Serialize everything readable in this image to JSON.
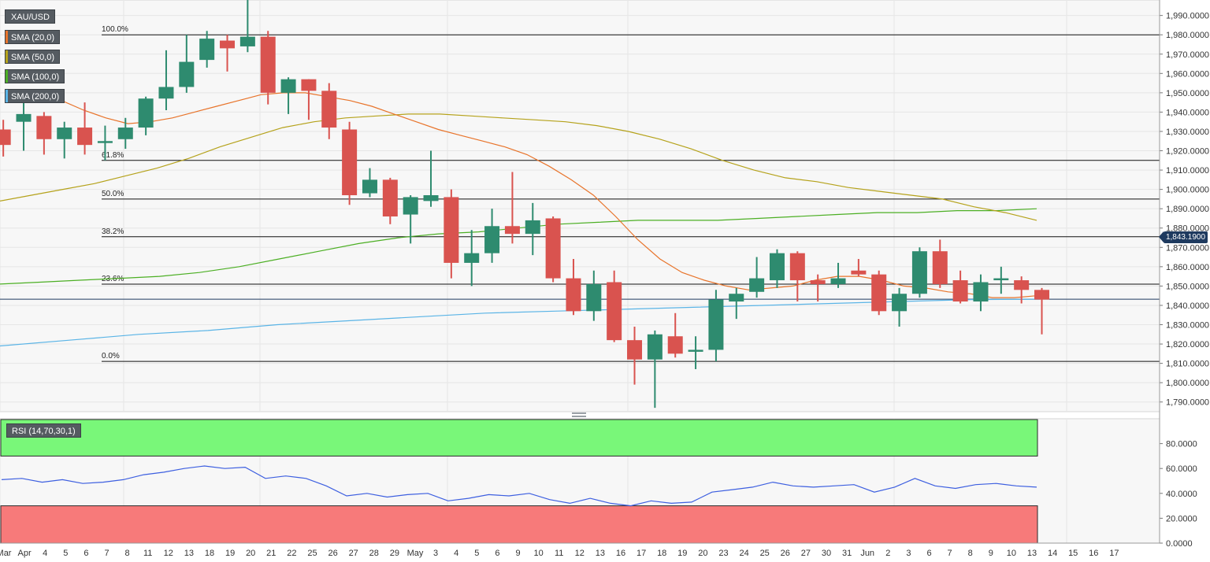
{
  "symbol": "XAU/USD",
  "price_tag": "1,843.1900",
  "legend": [
    {
      "label": "SMA (20,0)",
      "color": "#e8742b"
    },
    {
      "label": "SMA (50,0)",
      "color": "#b5a21b"
    },
    {
      "label": "SMA (100,0)",
      "color": "#4caf24"
    },
    {
      "label": "SMA (200,0)",
      "color": "#5ab4e6"
    }
  ],
  "rsi_label": "RSI (14,70,30,1)",
  "colors": {
    "up": "#2e8b6f",
    "down": "#d9534f",
    "last_price": "#1e3a5f",
    "rsi_line": "#3d5fe0",
    "overbought_zone": "#79f779",
    "oversold_zone": "#f77a7a"
  },
  "chart_data": [
    {
      "type": "candlestick",
      "title": "XAU/USD",
      "ylim": [
        1785,
        1998
      ],
      "y_ticks": [
        "1,790.0000",
        "1,800.0000",
        "1,810.0000",
        "1,820.0000",
        "1,830.0000",
        "1,840.0000",
        "1,850.0000",
        "1,860.0000",
        "1,870.0000",
        "1,880.0000",
        "1,890.0000",
        "1,900.0000",
        "1,910.0000",
        "1,920.0000",
        "1,930.0000",
        "1,940.0000",
        "1,950.0000",
        "1,960.0000",
        "1,970.0000",
        "1,980.0000",
        "1,990.0000"
      ],
      "x_labels": [
        "Mar",
        "Apr",
        "4",
        "5",
        "6",
        "7",
        "8",
        "11",
        "12",
        "13",
        "18",
        "19",
        "20",
        "21",
        "22",
        "25",
        "26",
        "27",
        "28",
        "29",
        "May",
        "3",
        "4",
        "5",
        "6",
        "9",
        "10",
        "11",
        "12",
        "13",
        "16",
        "17",
        "18",
        "19",
        "20",
        "23",
        "24",
        "25",
        "26",
        "27",
        "30",
        "31",
        "Jun",
        "2",
        "3",
        "6",
        "7",
        "8",
        "9",
        "10",
        "13",
        "14",
        "15",
        "16",
        "17"
      ],
      "candles": [
        {
          "o": 1931,
          "h": 1936,
          "l": 1917,
          "c": 1923
        },
        {
          "o": 1935,
          "h": 1950,
          "l": 1920,
          "c": 1939
        },
        {
          "o": 1938,
          "h": 1940,
          "l": 1918,
          "c": 1926
        },
        {
          "o": 1926,
          "h": 1935,
          "l": 1916,
          "c": 1932
        },
        {
          "o": 1932,
          "h": 1945,
          "l": 1918,
          "c": 1923
        },
        {
          "o": 1924,
          "h": 1933,
          "l": 1915,
          "c": 1925
        },
        {
          "o": 1926,
          "h": 1937,
          "l": 1921,
          "c": 1932
        },
        {
          "o": 1932,
          "h": 1948,
          "l": 1928,
          "c": 1947
        },
        {
          "o": 1947,
          "h": 1972,
          "l": 1941,
          "c": 1953
        },
        {
          "o": 1953,
          "h": 1980,
          "l": 1950,
          "c": 1966
        },
        {
          "o": 1967,
          "h": 1982,
          "l": 1963,
          "c": 1978
        },
        {
          "o": 1977,
          "h": 1980,
          "l": 1961,
          "c": 1973
        },
        {
          "o": 1974,
          "h": 1998,
          "l": 1971,
          "c": 1979
        },
        {
          "o": 1979,
          "h": 1982,
          "l": 1944,
          "c": 1950
        },
        {
          "o": 1950,
          "h": 1958,
          "l": 1939,
          "c": 1957
        },
        {
          "o": 1957,
          "h": 1957,
          "l": 1936,
          "c": 1951
        },
        {
          "o": 1951,
          "h": 1955,
          "l": 1926,
          "c": 1932
        },
        {
          "o": 1931,
          "h": 1935,
          "l": 1892,
          "c": 1897
        },
        {
          "o": 1898,
          "h": 1911,
          "l": 1896,
          "c": 1905
        },
        {
          "o": 1905,
          "h": 1906,
          "l": 1882,
          "c": 1886
        },
        {
          "o": 1887,
          "h": 1897,
          "l": 1872,
          "c": 1896
        },
        {
          "o": 1894,
          "h": 1920,
          "l": 1891,
          "c": 1897
        },
        {
          "o": 1896,
          "h": 1900,
          "l": 1854,
          "c": 1862
        },
        {
          "o": 1862,
          "h": 1879,
          "l": 1850,
          "c": 1867
        },
        {
          "o": 1867,
          "h": 1890,
          "l": 1862,
          "c": 1881
        },
        {
          "o": 1881,
          "h": 1909,
          "l": 1872,
          "c": 1877
        },
        {
          "o": 1877,
          "h": 1893,
          "l": 1866,
          "c": 1884
        },
        {
          "o": 1885,
          "h": 1886,
          "l": 1852,
          "c": 1854
        },
        {
          "o": 1854,
          "h": 1864,
          "l": 1835,
          "c": 1837
        },
        {
          "o": 1837,
          "h": 1858,
          "l": 1832,
          "c": 1851
        },
        {
          "o": 1852,
          "h": 1858,
          "l": 1821,
          "c": 1822
        },
        {
          "o": 1822,
          "h": 1829,
          "l": 1799,
          "c": 1812
        },
        {
          "o": 1812,
          "h": 1827,
          "l": 1787,
          "c": 1825
        },
        {
          "o": 1824,
          "h": 1836,
          "l": 1813,
          "c": 1815
        },
        {
          "o": 1816,
          "h": 1824,
          "l": 1807,
          "c": 1817
        },
        {
          "o": 1817,
          "h": 1848,
          "l": 1811,
          "c": 1843
        },
        {
          "o": 1842,
          "h": 1849,
          "l": 1833,
          "c": 1846
        },
        {
          "o": 1847,
          "h": 1865,
          "l": 1844,
          "c": 1854
        },
        {
          "o": 1853,
          "h": 1869,
          "l": 1849,
          "c": 1867
        },
        {
          "o": 1867,
          "h": 1868,
          "l": 1842,
          "c": 1853
        },
        {
          "o": 1853,
          "h": 1856,
          "l": 1842,
          "c": 1851
        },
        {
          "o": 1851,
          "h": 1862,
          "l": 1849,
          "c": 1854
        },
        {
          "o": 1858,
          "h": 1864,
          "l": 1855,
          "c": 1856
        },
        {
          "o": 1856,
          "h": 1858,
          "l": 1835,
          "c": 1837
        },
        {
          "o": 1837,
          "h": 1849,
          "l": 1829,
          "c": 1846
        },
        {
          "o": 1846,
          "h": 1870,
          "l": 1844,
          "c": 1868
        },
        {
          "o": 1868,
          "h": 1874,
          "l": 1849,
          "c": 1851
        },
        {
          "o": 1853,
          "h": 1858,
          "l": 1841,
          "c": 1842
        },
        {
          "o": 1842,
          "h": 1856,
          "l": 1837,
          "c": 1852
        },
        {
          "o": 1853,
          "h": 1860,
          "l": 1846,
          "c": 1854
        },
        {
          "o": 1853,
          "h": 1855,
          "l": 1841,
          "c": 1848
        },
        {
          "o": 1848,
          "h": 1849,
          "l": 1825,
          "c": 1843
        }
      ],
      "sma20": [
        1950,
        1946,
        1941,
        1937,
        1934,
        1935,
        1937,
        1940,
        1943,
        1946,
        1949,
        1950,
        1950,
        1948,
        1946,
        1943,
        1939,
        1935,
        1931,
        1928,
        1925,
        1922,
        1918,
        1912,
        1905,
        1897,
        1886,
        1874,
        1864,
        1857,
        1853,
        1850,
        1848,
        1849,
        1850,
        1853,
        1855,
        1855,
        1853,
        1850,
        1849,
        1847,
        1846,
        1844,
        1844,
        1845
      ],
      "sma50": [
        1894,
        1897,
        1900,
        1903,
        1907,
        1911,
        1916,
        1922,
        1927,
        1932,
        1935,
        1937,
        1938,
        1939,
        1939,
        1938,
        1937,
        1936,
        1935,
        1933,
        1930,
        1926,
        1921,
        1915,
        1910,
        1906,
        1904,
        1901,
        1899,
        1897,
        1895,
        1891,
        1888,
        1884
      ],
      "sma100": [
        1851,
        1852,
        1853,
        1854,
        1855,
        1857,
        1860,
        1864,
        1868,
        1872,
        1875,
        1877,
        1878,
        1880,
        1882,
        1883,
        1884,
        1884,
        1884,
        1885,
        1886,
        1887,
        1888,
        1888,
        1889,
        1889,
        1890
      ],
      "sma200": [
        1819,
        1822,
        1825,
        1827,
        1830,
        1832,
        1834,
        1836,
        1837,
        1838,
        1839,
        1840,
        1841,
        1842,
        1843,
        1843.2
      ],
      "fibonacci": [
        {
          "label": "100.0%",
          "value": 1980
        },
        {
          "label": "61.8%",
          "value": 1915
        },
        {
          "label": "50.0%",
          "value": 1895
        },
        {
          "label": "38.2%",
          "value": 1875.5
        },
        {
          "label": "23.6%",
          "value": 1851
        },
        {
          "label": "0.0%",
          "value": 1811
        }
      ],
      "last_price": 1843.19
    },
    {
      "type": "line",
      "title": "RSI (14,70,30,1)",
      "ylim": [
        0,
        100
      ],
      "y_ticks": [
        "0.0000",
        "20.0000",
        "40.0000",
        "60.0000",
        "80.0000"
      ],
      "overbought": 70,
      "oversold": 30,
      "values": [
        51,
        52,
        49,
        51,
        48,
        49,
        51,
        55,
        57,
        60,
        62,
        60,
        61,
        52,
        54,
        52,
        46,
        38,
        40,
        37,
        39,
        40,
        34,
        36,
        39,
        38,
        40,
        35,
        32,
        36,
        32,
        30,
        34,
        32,
        33,
        41,
        43,
        45,
        49,
        46,
        45,
        46,
        47,
        41,
        45,
        52,
        46,
        44,
        47,
        48,
        46,
        45
      ]
    }
  ]
}
